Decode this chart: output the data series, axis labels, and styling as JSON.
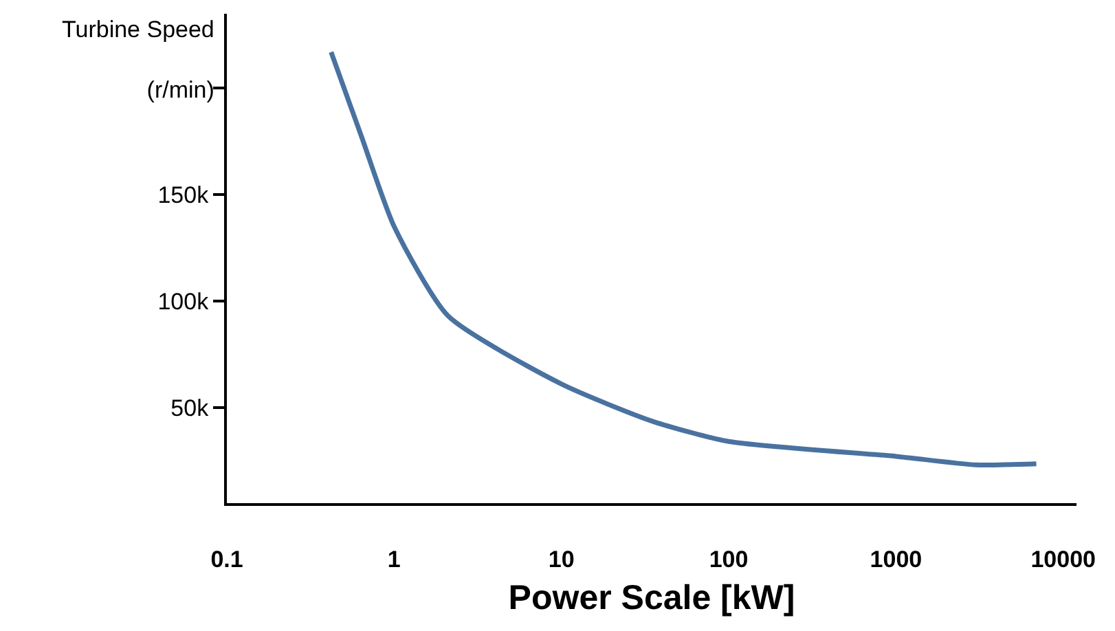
{
  "chart_data": {
    "type": "line",
    "xlabel": "Power Scale [kW]",
    "ylabel": "Turbine Speed\n(r/min)",
    "log": "x",
    "x": [
      0.42,
      0.64,
      1,
      2.1,
      10,
      35,
      100,
      1000,
      3000,
      6900
    ],
    "series": [
      {
        "color": "#4a72a0",
        "values": [
          217000,
          177000,
          135000,
          93000,
          61000,
          43500,
          34000,
          27000,
          23000,
          23500
        ]
      }
    ],
    "xlim": [
      0.1,
      12000
    ],
    "xticks": [
      0.1,
      1,
      10,
      100,
      1000,
      10000
    ],
    "ylim": [
      5000,
      235000
    ],
    "yticks": [
      {
        "value": 50000,
        "label": "50k"
      },
      {
        "value": 100000,
        "label": "100k"
      },
      {
        "value": 150000,
        "label": "150k"
      },
      {
        "value": 200000,
        "label": null
      }
    ],
    "grid": false,
    "marker": "none",
    "line_style": "solid"
  }
}
